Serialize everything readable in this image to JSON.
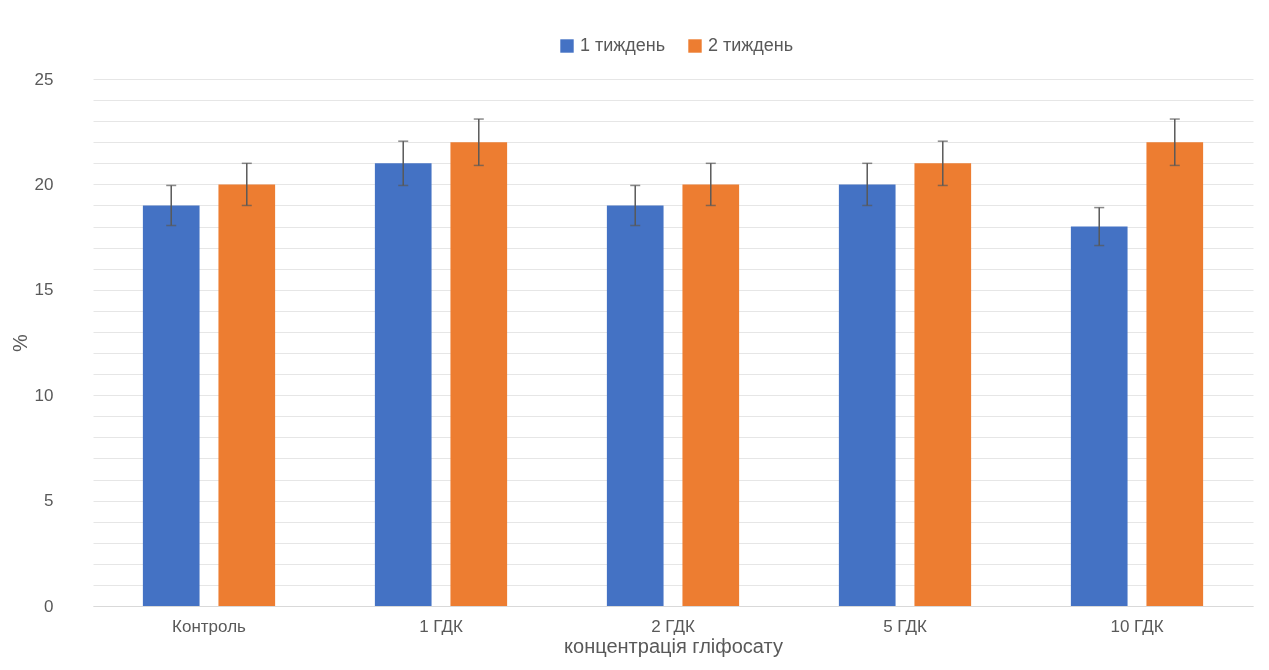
{
  "chart_data": {
    "type": "bar",
    "xlabel": "концентрація гліфосату",
    "ylabel": "%",
    "categories": [
      "Контроль",
      "1 ГДК",
      "2 ГДК",
      "5  ГДК",
      "10 ГДК"
    ],
    "series": [
      {
        "name": "1 тиждень",
        "color": "#4472c4",
        "values": [
          19,
          21,
          19,
          20,
          18
        ],
        "errors": [
          0.95,
          1.05,
          0.95,
          1,
          0.9
        ]
      },
      {
        "name": "2 тиждень",
        "color": "#ed7d31",
        "values": [
          20,
          22,
          20,
          21,
          22
        ],
        "errors": [
          1,
          1.1,
          1,
          1.05,
          1.1
        ]
      }
    ],
    "ylim": [
      0,
      25
    ],
    "yticks": [
      0,
      {
        "value": 1,
        "label": null
      },
      {
        "value": 2,
        "label": null
      },
      {
        "value": 3,
        "label": null
      },
      {
        "value": 4,
        "label": null
      },
      5,
      {
        "value": 6,
        "label": null
      },
      {
        "value": 7,
        "label": null
      },
      {
        "value": 8,
        "label": null
      },
      {
        "value": 9,
        "label": null
      },
      10,
      {
        "value": 11,
        "label": null
      },
      {
        "value": 12,
        "label": null
      },
      {
        "value": 13,
        "label": null
      },
      {
        "value": 14,
        "label": null
      },
      15,
      {
        "value": 16,
        "label": null
      },
      {
        "value": 17,
        "label": null
      },
      {
        "value": 18,
        "label": null
      },
      {
        "value": 19,
        "label": null
      },
      20,
      {
        "value": 21,
        "label": null
      },
      {
        "value": 22,
        "label": null
      },
      {
        "value": 23,
        "label": null
      },
      {
        "value": 24,
        "label": null
      },
      25
    ],
    "grid": true,
    "legend": "top"
  }
}
